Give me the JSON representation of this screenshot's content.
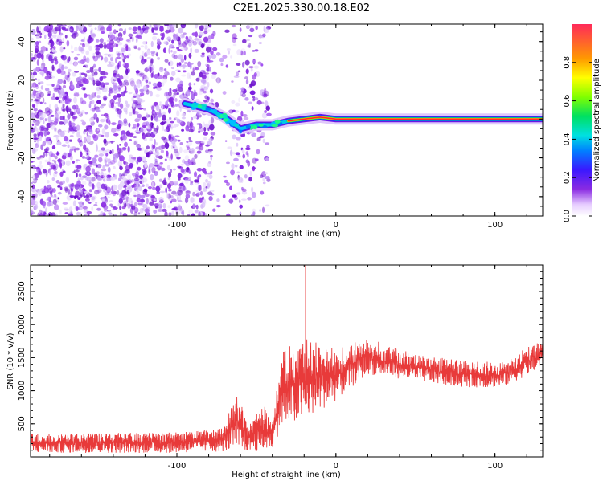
{
  "title": "C2E1.2025.330.00.18.E02",
  "chart_data": [
    {
      "type": "heatmap",
      "xlabel": "Height of straight line (km)",
      "ylabel": "Frequency (Hz)",
      "xlim": [
        -192,
        130
      ],
      "ylim": [
        -50,
        49
      ],
      "xticks": [
        -100,
        0,
        100
      ],
      "yticks": [
        -40,
        -20,
        0,
        20,
        40
      ],
      "colorbar": {
        "label": "Normalized spectral amplitude",
        "range": [
          0,
          1
        ],
        "ticks": [
          0.0,
          0.2,
          0.4,
          0.6,
          0.8
        ]
      },
      "ridge": [
        {
          "x": -95,
          "y": 8
        },
        {
          "x": -80,
          "y": 5
        },
        {
          "x": -70,
          "y": 1
        },
        {
          "x": -60,
          "y": -5
        },
        {
          "x": -50,
          "y": -3
        },
        {
          "x": -40,
          "y": -3
        },
        {
          "x": -30,
          "y": -1
        },
        {
          "x": -20,
          "y": 0
        },
        {
          "x": -10,
          "y": 1
        },
        {
          "x": 0,
          "y": 0
        },
        {
          "x": 50,
          "y": 0
        },
        {
          "x": 100,
          "y": 0
        },
        {
          "x": 130,
          "y": 0
        }
      ],
      "grid": false
    },
    {
      "type": "line",
      "xlabel": "Height of straight line (km)",
      "ylabel": "SNR (10 * v/v)",
      "xlim": [
        -192,
        130
      ],
      "ylim": [
        0,
        2900
      ],
      "xticks": [
        -100,
        0,
        100
      ],
      "yticks": [
        500,
        1000,
        1500,
        2000,
        2500
      ],
      "color": "#e83a3a",
      "envelope": [
        {
          "x": -192,
          "lo": 60,
          "hi": 350
        },
        {
          "x": -100,
          "lo": 60,
          "hi": 370
        },
        {
          "x": -72,
          "lo": 80,
          "hi": 430
        },
        {
          "x": -62,
          "lo": 80,
          "hi": 950
        },
        {
          "x": -55,
          "lo": 80,
          "hi": 500
        },
        {
          "x": -45,
          "lo": 80,
          "hi": 800
        },
        {
          "x": -40,
          "lo": 120,
          "hi": 500
        },
        {
          "x": -35,
          "lo": 400,
          "hi": 1600
        },
        {
          "x": -20,
          "lo": 550,
          "hi": 1800
        },
        {
          "x": 0,
          "lo": 850,
          "hi": 1650
        },
        {
          "x": 20,
          "lo": 1250,
          "hi": 1800
        },
        {
          "x": 50,
          "lo": 1150,
          "hi": 1550
        },
        {
          "x": 80,
          "lo": 1050,
          "hi": 1450
        },
        {
          "x": 105,
          "lo": 1050,
          "hi": 1450
        },
        {
          "x": 130,
          "lo": 1350,
          "hi": 1780
        }
      ],
      "spike": {
        "x": -19,
        "y": 2900
      },
      "grid": false
    }
  ]
}
